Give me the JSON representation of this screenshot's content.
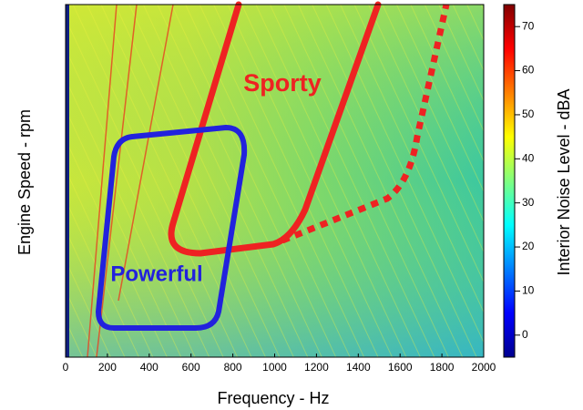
{
  "chart_data": {
    "type": "heatmap",
    "x_label": "Frequency - Hz",
    "y_label": "Engine Speed - rpm",
    "xlim": [
      0,
      2000
    ],
    "xticks": [
      0,
      200,
      400,
      600,
      800,
      1000,
      1200,
      1400,
      1600,
      1800,
      2000
    ],
    "colorbar": {
      "label": "Interior Noise Level - dBA",
      "lim": [
        -5,
        75
      ],
      "ticks": [
        0,
        10,
        20,
        30,
        40,
        50,
        60,
        70
      ]
    },
    "annotations": [
      {
        "text": "Sporty",
        "color": "#ee2222"
      },
      {
        "text": "Powerful",
        "color": "#2222dd"
      }
    ]
  }
}
